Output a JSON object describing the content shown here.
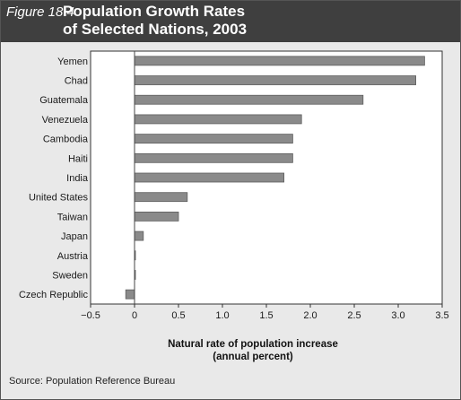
{
  "figure": {
    "label": "Figure 18.4",
    "title_line1": "Population Growth Rates",
    "title_line2": "of Selected Nations, 2003",
    "source": "Source: Population Reference Bureau"
  },
  "chart_data": {
    "type": "bar",
    "orientation": "horizontal",
    "categories": [
      "Yemen",
      "Chad",
      "Guatemala",
      "Venezuela",
      "Cambodia",
      "Haiti",
      "India",
      "United States",
      "Taiwan",
      "Japan",
      "Austria",
      "Sweden",
      "Czech Republic"
    ],
    "values": [
      3.3,
      3.2,
      2.6,
      1.9,
      1.8,
      1.8,
      1.7,
      0.6,
      0.5,
      0.1,
      0.0,
      0.0,
      -0.1
    ],
    "xlabel_line1": "Natural rate of population increase",
    "xlabel_line2": "(annual percent)",
    "xlim": [
      -0.5,
      3.5
    ],
    "ticks": [
      "−0.5",
      "0",
      "0.5",
      "1.0",
      "1.5",
      "2.0",
      "2.5",
      "3.0",
      "3.5"
    ],
    "tick_values": [
      -0.5,
      0,
      0.5,
      1.0,
      1.5,
      2.0,
      2.5,
      3.0,
      3.5
    ],
    "grid": false,
    "colors": {
      "bar_fill": "#8a8a8a",
      "bar_edge": "#5e5e5e",
      "plot_bg": "#ffffff",
      "frame_bg": "#e9e9e9",
      "header_bg": "#3f3f3f"
    }
  }
}
